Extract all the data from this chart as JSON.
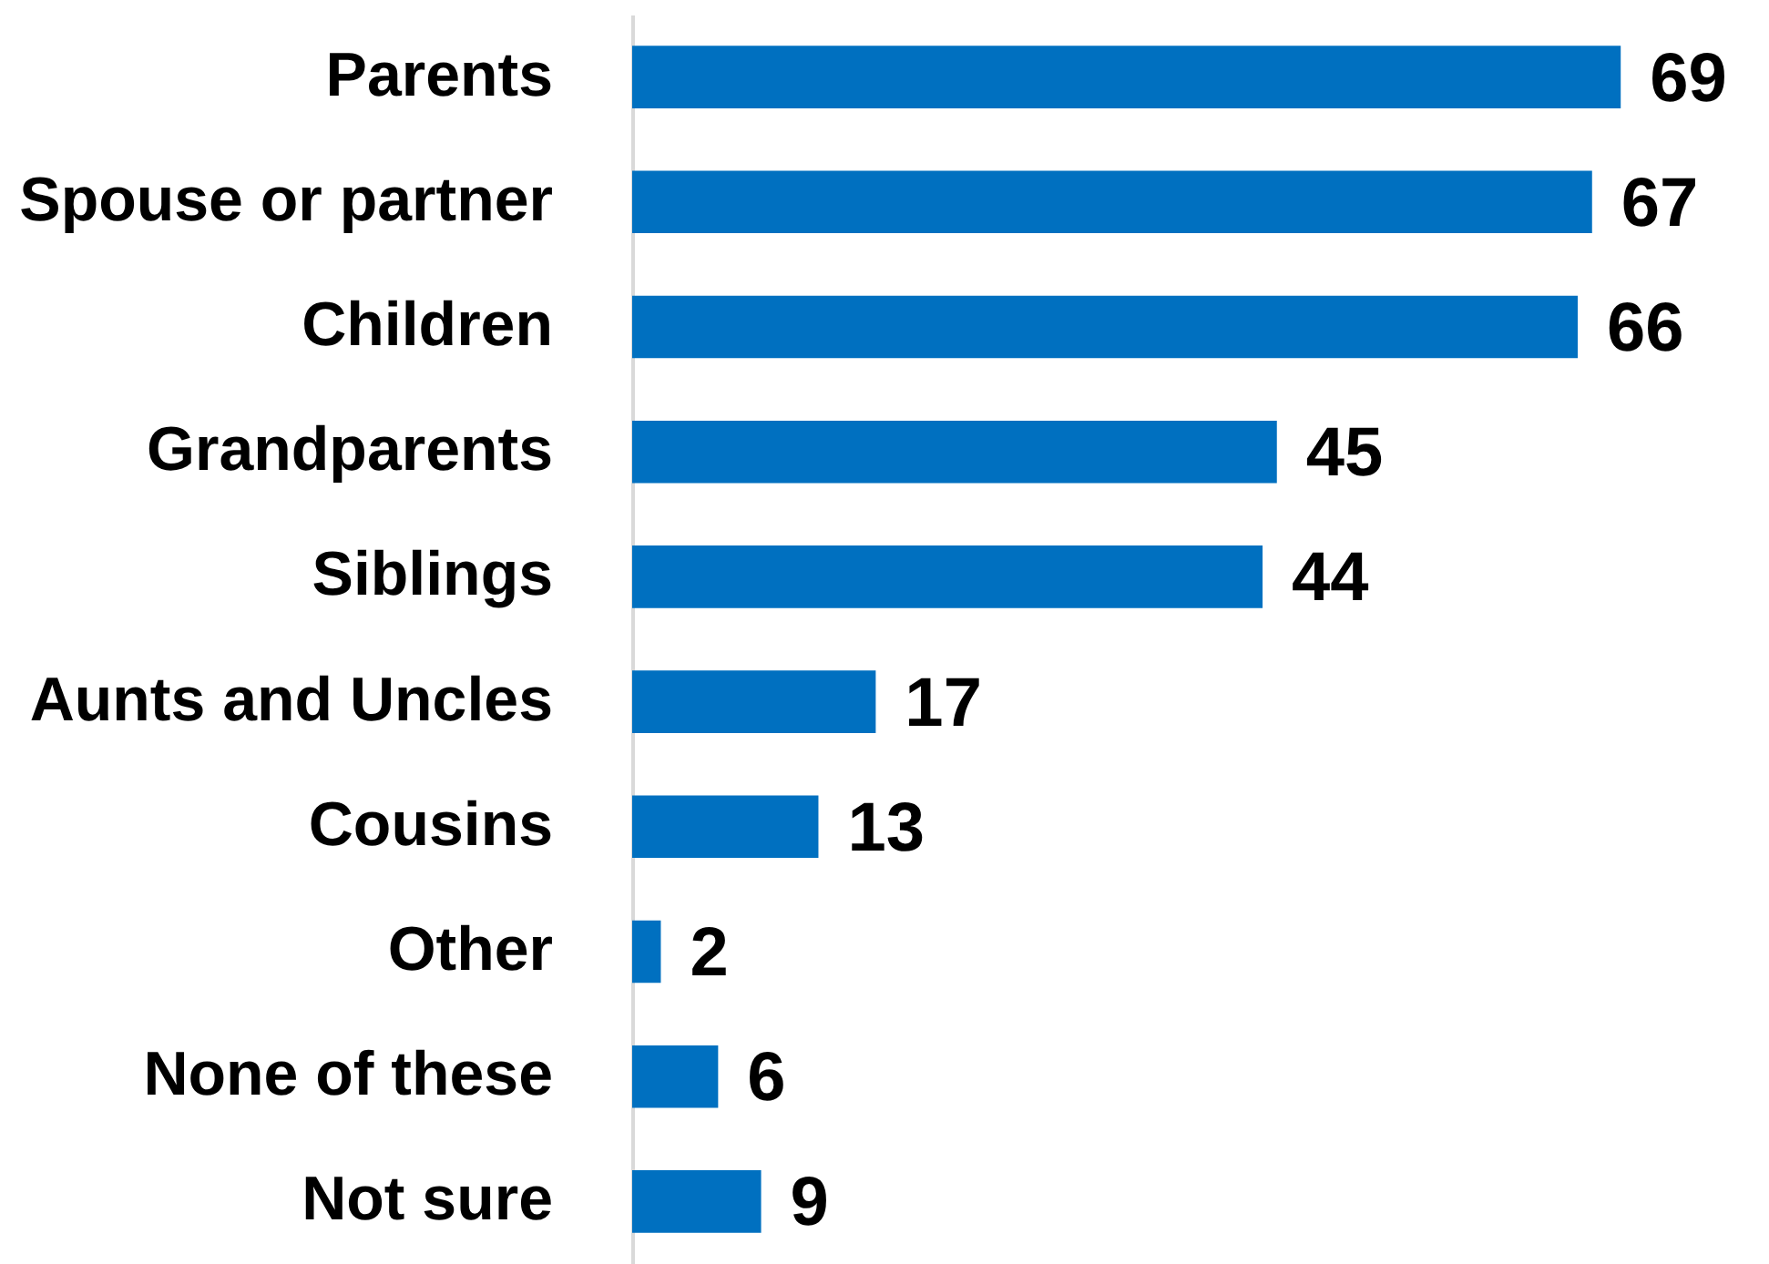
{
  "chart_data": {
    "type": "bar",
    "orientation": "horizontal",
    "categories": [
      "Parents",
      "Spouse or partner",
      "Children",
      "Grandparents",
      "Siblings",
      "Aunts and Uncles",
      "Cousins",
      "Other",
      "None of these",
      "Not sure"
    ],
    "values": [
      69,
      67,
      66,
      45,
      44,
      17,
      13,
      2,
      6,
      9
    ],
    "color": "#0070c0",
    "data_labels": true
  }
}
